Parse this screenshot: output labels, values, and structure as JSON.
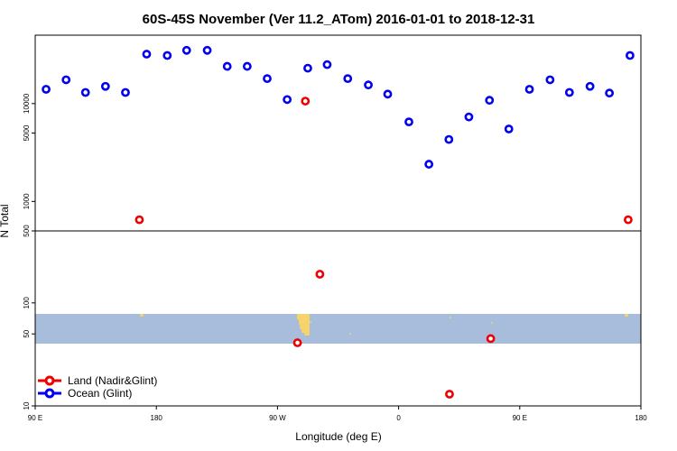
{
  "chart_data": {
    "type": "scatter",
    "title": "60S-45S November (Ver 11.2_ATom)   2016-01-01 to 2018-12-31",
    "xlabel": "Longitude (deg E)",
    "ylabel": "N Total",
    "y_scale": "log",
    "x_tick_labels": [
      "90 E",
      "180",
      "90 W",
      "0",
      "90 E",
      "180"
    ],
    "upper_panel": {
      "ylim": [
        500,
        50000
      ],
      "y_ticks": [
        500,
        1000,
        5000,
        10000
      ]
    },
    "lower_panel": {
      "ylim": [
        10,
        500
      ],
      "y_ticks": [
        10,
        50,
        100
      ],
      "map_band": "60S-45S",
      "map_colors": {
        "ocean": "#a8bcdc",
        "land": "#f6d36b"
      }
    },
    "series": [
      {
        "name": "Land (Nadir&Glint)",
        "color": "#ee0000",
        "points": [
          {
            "x": 0.172,
            "y": 650,
            "panel": "upper"
          },
          {
            "x": 0.446,
            "y": 10600,
            "panel": "upper"
          },
          {
            "x": 0.979,
            "y": 650,
            "panel": "upper"
          },
          {
            "x": 0.47,
            "y": 190,
            "panel": "lower"
          },
          {
            "x": 0.433,
            "y": 41,
            "panel": "lower"
          },
          {
            "x": 0.752,
            "y": 45,
            "panel": "lower"
          },
          {
            "x": 0.684,
            "y": 13,
            "panel": "lower"
          }
        ]
      },
      {
        "name": "Ocean (Glint)",
        "color": "#0000ee",
        "points": [
          {
            "x": 0.018,
            "y": 14000
          },
          {
            "x": 0.051,
            "y": 17500
          },
          {
            "x": 0.083,
            "y": 13000
          },
          {
            "x": 0.116,
            "y": 15000
          },
          {
            "x": 0.149,
            "y": 13000
          },
          {
            "x": 0.184,
            "y": 32000
          },
          {
            "x": 0.218,
            "y": 31000
          },
          {
            "x": 0.25,
            "y": 35000
          },
          {
            "x": 0.284,
            "y": 35000
          },
          {
            "x": 0.317,
            "y": 24000
          },
          {
            "x": 0.35,
            "y": 24000
          },
          {
            "x": 0.383,
            "y": 18000
          },
          {
            "x": 0.416,
            "y": 11000
          },
          {
            "x": 0.45,
            "y": 23000
          },
          {
            "x": 0.482,
            "y": 25000
          },
          {
            "x": 0.516,
            "y": 18000
          },
          {
            "x": 0.55,
            "y": 15500
          },
          {
            "x": 0.582,
            "y": 12500
          },
          {
            "x": 0.617,
            "y": 6500
          },
          {
            "x": 0.65,
            "y": 2400
          },
          {
            "x": 0.683,
            "y": 4300
          },
          {
            "x": 0.716,
            "y": 7300
          },
          {
            "x": 0.75,
            "y": 10800
          },
          {
            "x": 0.782,
            "y": 5500
          },
          {
            "x": 0.816,
            "y": 14000
          },
          {
            "x": 0.85,
            "y": 17500
          },
          {
            "x": 0.882,
            "y": 13000
          },
          {
            "x": 0.916,
            "y": 15000
          },
          {
            "x": 0.948,
            "y": 12800
          },
          {
            "x": 0.982,
            "y": 31000
          }
        ]
      }
    ],
    "legend_position": "bottom-left"
  }
}
